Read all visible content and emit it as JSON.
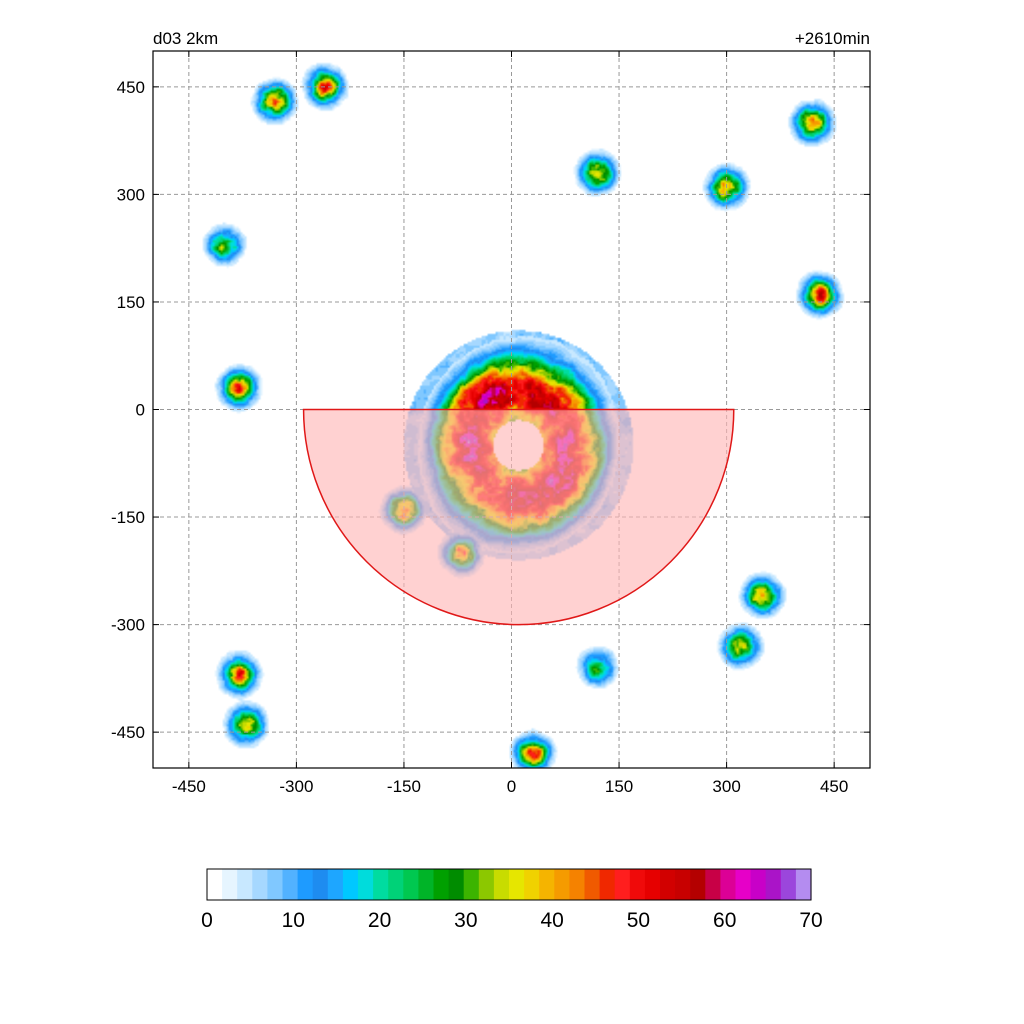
{
  "chart_data": {
    "type": "heatmap",
    "title_left": "d03 2km",
    "title_right": "+2610min",
    "xlabel": "",
    "ylabel": "",
    "xlim": [
      -500,
      500
    ],
    "ylim": [
      -500,
      500
    ],
    "x_ticks": [
      -450,
      -300,
      -150,
      0,
      150,
      300,
      450
    ],
    "y_ticks": [
      450,
      300,
      150,
      0,
      -150,
      -300,
      -450
    ],
    "grid": true,
    "field": {
      "eye_center": [
        10,
        -50
      ],
      "eye_radius": 35,
      "core_peak_value": 55,
      "rainbands": [
        {
          "x": -380,
          "y": 30,
          "value": 48
        },
        {
          "x": -150,
          "y": -140,
          "value": 52
        },
        {
          "x": -70,
          "y": -200,
          "value": 50
        },
        {
          "x": 300,
          "y": 310,
          "value": 48
        },
        {
          "x": 420,
          "y": 400,
          "value": 50
        },
        {
          "x": 430,
          "y": 160,
          "value": 50
        },
        {
          "x": -330,
          "y": 430,
          "value": 50
        },
        {
          "x": -260,
          "y": 450,
          "value": 50
        },
        {
          "x": -380,
          "y": -370,
          "value": 50
        },
        {
          "x": -370,
          "y": -440,
          "value": 48
        },
        {
          "x": 320,
          "y": -330,
          "value": 45
        },
        {
          "x": 350,
          "y": -260,
          "value": 45
        },
        {
          "x": 30,
          "y": -480,
          "value": 48
        },
        {
          "x": 120,
          "y": -360,
          "value": 30
        },
        {
          "x": -400,
          "y": 230,
          "value": 35
        },
        {
          "x": 120,
          "y": 330,
          "value": 45
        }
      ]
    },
    "overlay_sector": {
      "center": [
        10,
        0
      ],
      "radius": 300,
      "angle_start_deg": 180,
      "angle_end_deg": 360,
      "fill": "#ffb4b4",
      "stroke": "#e01818"
    },
    "colorbar": {
      "ticks": [
        0,
        10,
        20,
        30,
        40,
        50,
        60,
        70
      ],
      "min": 0,
      "max": 70,
      "colors": [
        "#ffffff",
        "#e6f5ff",
        "#c8e8ff",
        "#a6d8ff",
        "#80c8ff",
        "#52b2ff",
        "#1e9bff",
        "#1e8cf0",
        "#1ea6ff",
        "#00c8ff",
        "#00dcdc",
        "#00dca0",
        "#00d278",
        "#00c850",
        "#00b428",
        "#00a000",
        "#008c00",
        "#3cb400",
        "#8cc800",
        "#c8dc00",
        "#e6e600",
        "#f0d200",
        "#f5b400",
        "#f59b00",
        "#f58200",
        "#f05a00",
        "#f02800",
        "#ff1e1e",
        "#f00a0a",
        "#e60000",
        "#d20000",
        "#c80000",
        "#b40000",
        "#c80046",
        "#dc0096",
        "#e600c8",
        "#c800c8",
        "#aa14c8",
        "#9b46dc",
        "#b48cf0"
      ]
    }
  }
}
